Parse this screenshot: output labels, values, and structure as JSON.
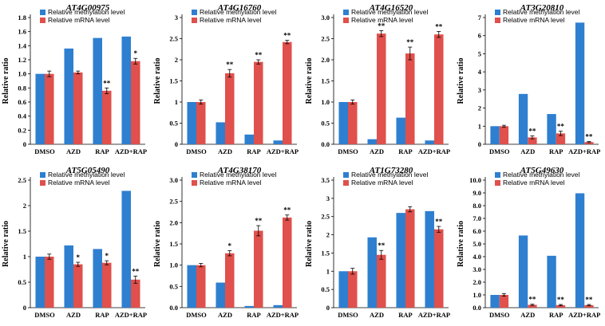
{
  "colors": {
    "methylation": "#2E7FD0",
    "mrna": "#E0504C"
  },
  "chart_data": [
    {
      "type": "bar",
      "title": "AT4G00975",
      "ylabel": "Relative ratio",
      "xlabel": "",
      "categories": [
        "DMSO",
        "AZD",
        "RAP",
        "AZD+RAP"
      ],
      "ylim": [
        0,
        1.8
      ],
      "yticks": [
        "0",
        "0.2",
        "0.4",
        "0.6",
        "0.8",
        "1.0",
        "1.2",
        "1.4",
        "1.6",
        "1.8"
      ],
      "series": [
        {
          "name": "Relative methylation level",
          "values": [
            1.0,
            1.36,
            1.51,
            1.53
          ]
        },
        {
          "name": "Relative mRNA level",
          "values": [
            1.0,
            1.02,
            0.76,
            1.18
          ],
          "errors": [
            0.04,
            0.02,
            0.04,
            0.04
          ],
          "sig": [
            "",
            "",
            "**",
            "*"
          ]
        }
      ]
    },
    {
      "type": "bar",
      "title": "AT4G16760",
      "ylabel": "Relative ratio",
      "xlabel": "",
      "categories": [
        "DMSO",
        "AZD",
        "RAP",
        "AZD+RAP"
      ],
      "ylim": [
        0,
        3.0
      ],
      "yticks": [
        "0",
        "0.5",
        "1",
        "1.5",
        "2",
        "2.5",
        "3"
      ],
      "series": [
        {
          "name": "Relative methylation level",
          "values": [
            1.0,
            0.52,
            0.23,
            0.09
          ]
        },
        {
          "name": "Relative mRNA level",
          "values": [
            1.0,
            1.68,
            1.95,
            2.42
          ],
          "errors": [
            0.05,
            0.09,
            0.05,
            0.04
          ],
          "sig": [
            "",
            "**",
            "**",
            "**"
          ]
        }
      ]
    },
    {
      "type": "bar",
      "title": "AT4G16520",
      "ylabel": "Relative ratio",
      "xlabel": "",
      "categories": [
        "DMSO",
        "AZD",
        "RAP",
        "AZD+RAP"
      ],
      "ylim": [
        0,
        3.0
      ],
      "yticks": [
        "0.0",
        "0.5",
        "1.0",
        "1.5",
        "2.0",
        "2.5",
        "3.0"
      ],
      "series": [
        {
          "name": "Relative methylation level",
          "values": [
            1.0,
            0.12,
            0.63,
            0.09
          ]
        },
        {
          "name": "Relative mRNA level",
          "values": [
            1.0,
            2.62,
            2.15,
            2.6
          ],
          "errors": [
            0.05,
            0.07,
            0.15,
            0.07
          ],
          "sig": [
            "",
            "**",
            "**",
            "**"
          ]
        }
      ]
    },
    {
      "type": "bar",
      "title": "AT3G20810",
      "ylabel": "Relative ratio",
      "xlabel": "",
      "categories": [
        "DMSO",
        "AZD",
        "RAP",
        "AZD+RAP"
      ],
      "ylim": [
        0,
        7
      ],
      "yticks": [
        "0",
        "1",
        "2",
        "3",
        "4",
        "5",
        "6",
        "7"
      ],
      "series": [
        {
          "name": "Relative methylation level",
          "values": [
            1.0,
            2.78,
            1.67,
            6.72
          ]
        },
        {
          "name": "Relative mRNA level",
          "values": [
            1.0,
            0.38,
            0.6,
            0.12
          ],
          "errors": [
            0.05,
            0.08,
            0.12,
            0.03
          ],
          "sig": [
            "",
            "**",
            "**",
            "**"
          ]
        }
      ]
    },
    {
      "type": "bar",
      "title": "AT5G05490",
      "ylabel": "Relative ratio",
      "xlabel": "",
      "categories": [
        "DMSO",
        "AZD",
        "RAP",
        "AZD+RAP"
      ],
      "ylim": [
        0,
        2.5
      ],
      "yticks": [
        "0",
        "0.5",
        "1",
        "1.5",
        "2",
        "2.5"
      ],
      "series": [
        {
          "name": "Relative methylation level",
          "values": [
            1.0,
            1.22,
            1.15,
            2.29
          ]
        },
        {
          "name": "Relative mRNA level",
          "values": [
            1.0,
            0.85,
            0.88,
            0.55
          ],
          "errors": [
            0.05,
            0.04,
            0.04,
            0.07
          ],
          "sig": [
            "",
            "*",
            "*",
            "**"
          ]
        }
      ]
    },
    {
      "type": "bar",
      "title": "AT4G38170",
      "ylabel": "Relative ratio",
      "xlabel": "",
      "categories": [
        "DMSO",
        "AZD",
        "RAP",
        "AZD+RAP"
      ],
      "ylim": [
        0,
        3.0
      ],
      "yticks": [
        "0.0",
        "0.5",
        "1.0",
        "1.5",
        "2.0",
        "2.5",
        "3.0"
      ],
      "series": [
        {
          "name": "Relative methylation level",
          "values": [
            1.0,
            0.59,
            0.04,
            0.06
          ]
        },
        {
          "name": "Relative mRNA level",
          "values": [
            1.0,
            1.28,
            1.81,
            2.12
          ],
          "errors": [
            0.04,
            0.06,
            0.12,
            0.06
          ],
          "sig": [
            "",
            "*",
            "**",
            "**"
          ]
        }
      ]
    },
    {
      "type": "bar",
      "title": "AT1G73280",
      "ylabel": "Relative ratio",
      "xlabel": "",
      "categories": [
        "DMSO",
        "AZD",
        "RAP",
        "AZD+RAP"
      ],
      "ylim": [
        0,
        3.5
      ],
      "yticks": [
        "0",
        "0.5",
        "1",
        "1.5",
        "2",
        "2.5",
        "3",
        "3.5"
      ],
      "series": [
        {
          "name": "Relative methylation level",
          "values": [
            1.0,
            1.93,
            2.6,
            2.65
          ]
        },
        {
          "name": "Relative mRNA level",
          "values": [
            1.0,
            1.45,
            2.7,
            2.15
          ],
          "errors": [
            0.08,
            0.12,
            0.07,
            0.08
          ],
          "sig": [
            "",
            "**",
            "",
            "**"
          ]
        }
      ]
    },
    {
      "type": "bar",
      "title": "AT5G49630",
      "ylabel": "Relative ratio",
      "xlabel": "",
      "categories": [
        "DMSO",
        "AZD",
        "RAP",
        "AZD+RAP"
      ],
      "ylim": [
        0,
        10
      ],
      "yticks": [
        "0.0",
        "1.0",
        "2.0",
        "3.0",
        "4.0",
        "5.0",
        "6.0",
        "7.0",
        "8.0",
        "9.0",
        "10.0"
      ],
      "series": [
        {
          "name": "Relative methylation level",
          "values": [
            1.0,
            5.66,
            4.07,
            8.97
          ]
        },
        {
          "name": "Relative mRNA level",
          "values": [
            1.0,
            0.22,
            0.2,
            0.2
          ],
          "errors": [
            0.1,
            0.05,
            0.05,
            0.05
          ],
          "sig": [
            "",
            "**",
            "**",
            "**"
          ]
        }
      ]
    }
  ]
}
